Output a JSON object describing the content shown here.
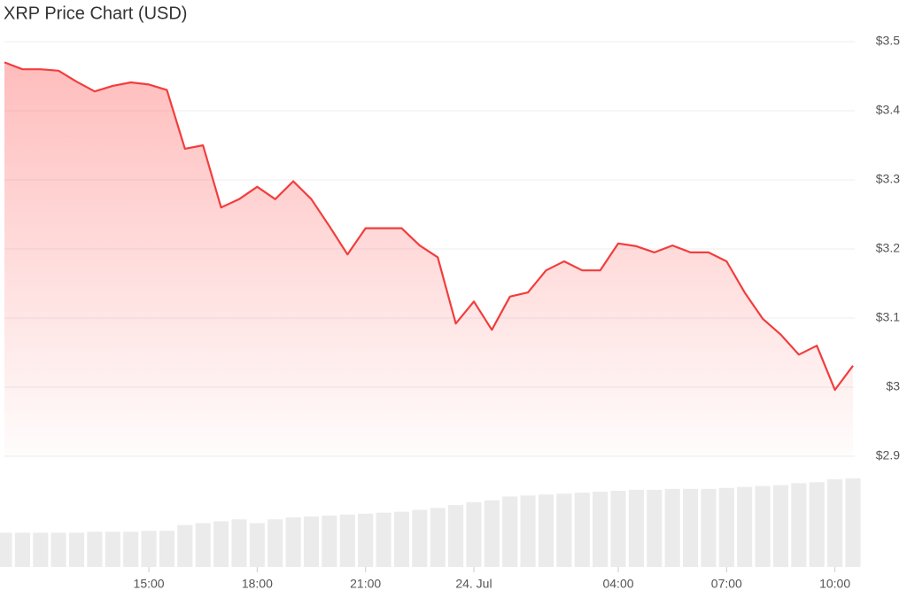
{
  "chart_data": {
    "type": "line",
    "title": "XRP Price Chart (USD)",
    "categories": [
      null,
      null,
      null,
      null,
      null,
      null,
      null,
      null,
      "15:00",
      null,
      null,
      null,
      null,
      null,
      "18:00",
      null,
      null,
      null,
      null,
      null,
      "21:00",
      null,
      null,
      null,
      null,
      null,
      "24. Jul",
      null,
      null,
      null,
      null,
      null,
      null,
      null,
      "04:00",
      null,
      null,
      null,
      null,
      null,
      "07:00",
      null,
      null,
      null,
      null,
      null,
      "10:00",
      null
    ],
    "values": [
      3.47,
      3.46,
      3.46,
      3.458,
      3.442,
      3.428,
      3.436,
      3.441,
      3.438,
      3.43,
      3.345,
      3.35,
      3.26,
      3.272,
      3.29,
      3.272,
      3.298,
      3.272,
      3.233,
      3.192,
      3.23,
      3.23,
      3.23,
      3.205,
      3.188,
      3.092,
      3.124,
      3.083,
      3.131,
      3.137,
      3.169,
      3.182,
      3.169,
      3.169,
      3.208,
      3.204,
      3.195,
      3.205,
      3.195,
      3.195,
      3.182,
      3.137,
      3.099,
      3.076,
      3.047,
      3.06,
      2.996,
      3.031
    ],
    "volume": [
      36,
      36,
      36,
      36,
      36,
      37,
      37,
      37,
      38,
      38,
      44,
      46,
      48,
      50,
      46,
      50,
      52,
      53,
      54,
      55,
      56,
      57,
      58,
      60,
      62,
      65,
      68,
      70,
      74,
      75,
      76,
      77,
      78,
      79,
      80,
      81,
      81,
      82,
      82,
      82,
      83,
      84,
      85,
      86,
      88,
      89,
      92,
      93
    ],
    "color": "#f23d3d",
    "volume_color": "#ebebeb",
    "ylim": [
      2.9,
      3.5
    ],
    "yticks": [
      {
        "value": 2.9,
        "label": "$2.9"
      },
      {
        "value": 3,
        "label": "$3"
      },
      {
        "value": 3.1,
        "label": "$3.1"
      },
      {
        "value": 3.2,
        "label": "$3.2"
      },
      {
        "value": 3.3,
        "label": "$3.3"
      },
      {
        "value": 3.4,
        "label": "$3.4"
      },
      {
        "value": 3.5,
        "label": "$3.5"
      }
    ],
    "grid": true
  }
}
